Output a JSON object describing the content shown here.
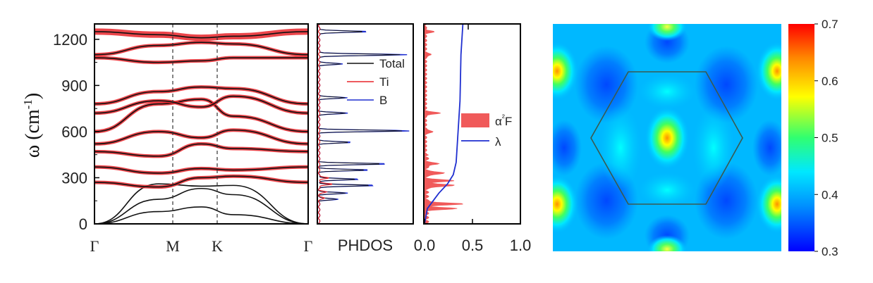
{
  "chart_data": [
    {
      "type": "line",
      "panel": "phonon-dispersion",
      "ylabel": "ω (cm⁻¹)",
      "ylim": [
        0,
        1300
      ],
      "yticks": [
        0,
        300,
        600,
        900,
        1200
      ],
      "ytick_labels": [
        "0",
        "300",
        "600",
        "900",
        "1200"
      ],
      "xticks": [
        "Γ",
        "M",
        "K",
        "Γ"
      ],
      "series": [
        {
          "values": [
            [
              0,
              0
            ],
            [
              0.3,
              80
            ],
            [
              0.5,
              110
            ],
            [
              0.65,
              60
            ],
            [
              1,
              0
            ]
          ]
        },
        {
          "values": [
            [
              0,
              0
            ],
            [
              0.3,
              160
            ],
            [
              0.5,
              230
            ],
            [
              0.65,
              190
            ],
            [
              1,
              0
            ]
          ]
        },
        {
          "values": [
            [
              0,
              0
            ],
            [
              0.3,
              260
            ],
            [
              0.5,
              245
            ],
            [
              0.65,
              250
            ],
            [
              1,
              0
            ]
          ]
        },
        {
          "values": [
            [
              0,
              270
            ],
            [
              0.3,
              240
            ],
            [
              0.5,
              300
            ],
            [
              0.65,
              310
            ],
            [
              1,
              270
            ]
          ]
        },
        {
          "values": [
            [
              0,
              370
            ],
            [
              0.3,
              330
            ],
            [
              0.5,
              360
            ],
            [
              0.65,
              350
            ],
            [
              1,
              370
            ]
          ]
        },
        {
          "values": [
            [
              0,
              470
            ],
            [
              0.3,
              440
            ],
            [
              0.5,
              520
            ],
            [
              0.65,
              490
            ],
            [
              1,
              470
            ]
          ]
        },
        {
          "values": [
            [
              0,
              520
            ],
            [
              0.3,
              600
            ],
            [
              0.5,
              560
            ],
            [
              0.65,
              610
            ],
            [
              1,
              520
            ]
          ]
        },
        {
          "values": [
            [
              0,
              600
            ],
            [
              0.3,
              780
            ],
            [
              0.5,
              810
            ],
            [
              0.65,
              700
            ],
            [
              1,
              600
            ]
          ]
        },
        {
          "values": [
            [
              0,
              720
            ],
            [
              0.3,
              800
            ],
            [
              0.5,
              760
            ],
            [
              0.65,
              830
            ],
            [
              1,
              720
            ]
          ]
        },
        {
          "values": [
            [
              0,
              780
            ],
            [
              0.3,
              860
            ],
            [
              0.5,
              890
            ],
            [
              0.65,
              880
            ],
            [
              1,
              780
            ]
          ]
        },
        {
          "values": [
            [
              0,
              1080
            ],
            [
              0.3,
              1050
            ],
            [
              0.5,
              1060
            ],
            [
              0.65,
              1080
            ],
            [
              1,
              1080
            ]
          ]
        },
        {
          "values": [
            [
              0,
              1100
            ],
            [
              0.3,
              1160
            ],
            [
              0.5,
              1180
            ],
            [
              0.65,
              1170
            ],
            [
              1,
              1100
            ]
          ]
        },
        {
          "values": [
            [
              0,
              1250
            ],
            [
              0.3,
              1230
            ],
            [
              0.5,
              1210
            ],
            [
              0.65,
              1220
            ],
            [
              1,
              1250
            ]
          ]
        }
      ],
      "highlight_color": "#e8242a",
      "line_color": "#111111"
    },
    {
      "type": "line",
      "panel": "phdos",
      "xlabel": "PHDOS",
      "legend": [
        "Total",
        "Ti",
        "B"
      ],
      "colors": {
        "Total": "#111111",
        "Ti": "#e8242a",
        "B": "#1f2fd0"
      },
      "peaks": [
        {
          "y": 1250,
          "h": 0.55
        },
        {
          "y": 1100,
          "h": 0.95
        },
        {
          "y": 1040,
          "h": 0.25
        },
        {
          "y": 820,
          "h": 0.3
        },
        {
          "y": 720,
          "h": 0.3
        },
        {
          "y": 605,
          "h": 0.98
        },
        {
          "y": 530,
          "h": 0.35
        },
        {
          "y": 390,
          "h": 0.75
        },
        {
          "y": 350,
          "h": 0.55
        },
        {
          "y": 290,
          "h": 0.45
        },
        {
          "y": 250,
          "h": 0.62
        },
        {
          "y": 200,
          "h": 0.3
        },
        {
          "y": 160,
          "h": 0.2
        }
      ]
    },
    {
      "type": "area",
      "panel": "eliashberg",
      "xlim": [
        0,
        1.0
      ],
      "xticks": [
        0.0,
        0.5,
        1.0
      ],
      "xtick_labels": [
        "0.0",
        "0.5",
        "1.0"
      ],
      "legend": [
        "α²F",
        "λ"
      ],
      "colors": {
        "a2F": "#f05a5a",
        "lambda": "#1f2fd0"
      },
      "a2F_peaks": [
        {
          "y": 1250,
          "h": 0.08
        },
        {
          "y": 1100,
          "h": 0.06
        },
        {
          "y": 720,
          "h": 0.15
        },
        {
          "y": 600,
          "h": 0.08
        },
        {
          "y": 390,
          "h": 0.12
        },
        {
          "y": 330,
          "h": 0.2
        },
        {
          "y": 280,
          "h": 0.28
        },
        {
          "y": 250,
          "h": 0.3
        },
        {
          "y": 130,
          "h": 0.38
        },
        {
          "y": 100,
          "h": 0.3
        }
      ],
      "lambda": [
        [
          0,
          0
        ],
        [
          100,
          0.03
        ],
        [
          200,
          0.15
        ],
        [
          260,
          0.24
        ],
        [
          320,
          0.3
        ],
        [
          400,
          0.33
        ],
        [
          600,
          0.35
        ],
        [
          800,
          0.37
        ],
        [
          1100,
          0.38
        ],
        [
          1300,
          0.4
        ]
      ]
    },
    {
      "type": "heatmap",
      "panel": "fermi-surface-contour",
      "colorbar": {
        "min": 0.3,
        "max": 0.7,
        "ticks": [
          "0.3",
          "0.4",
          "0.5",
          "0.6",
          "0.7"
        ]
      },
      "colors": [
        "#0000ff",
        "#00a8ff",
        "#00ffff",
        "#55ff55",
        "#ffff00",
        "#ff8800",
        "#ff0000"
      ]
    }
  ]
}
